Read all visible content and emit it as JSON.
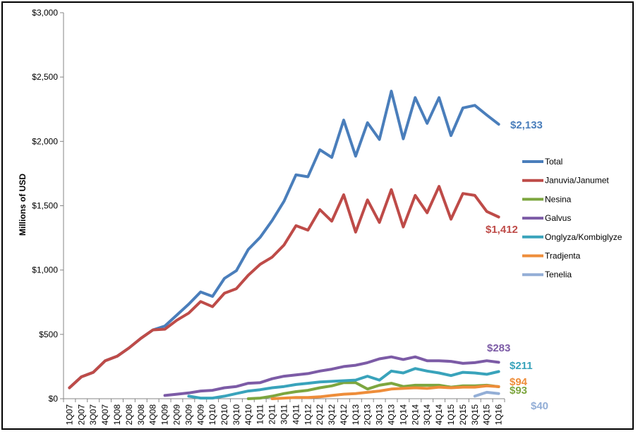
{
  "chart_data": {
    "type": "line",
    "title": "",
    "xlabel": "",
    "ylabel": "Millions of USD",
    "ylim": [
      0,
      3000
    ],
    "y_ticks": [
      {
        "value": 0,
        "label": "$0"
      },
      {
        "value": 500,
        "label": "$500"
      },
      {
        "value": 1000,
        "label": "$1,000"
      },
      {
        "value": 1500,
        "label": "$1,500"
      },
      {
        "value": 2000,
        "label": "$2,000"
      },
      {
        "value": 2500,
        "label": "$2,500"
      },
      {
        "value": 3000,
        "label": "$3,000"
      }
    ],
    "grid": false,
    "legend_position": "right",
    "categories": [
      "1Q07",
      "2Q07",
      "3Q07",
      "4Q07",
      "1Q08",
      "2Q08",
      "3Q08",
      "4Q08",
      "1Q09",
      "2Q09",
      "3Q09",
      "4Q09",
      "1Q10",
      "2Q10",
      "3Q10",
      "4Q10",
      "1Q11",
      "2Q11",
      "3Q11",
      "4Q11",
      "1Q12",
      "2Q12",
      "3Q12",
      "4Q12",
      "1Q13",
      "2Q13",
      "3Q13",
      "4Q13",
      "1Q14",
      "2Q14",
      "3Q14",
      "4Q14",
      "1Q15",
      "2Q15",
      "3Q15",
      "4Q15",
      "1Q16"
    ],
    "series": [
      {
        "name": "Total",
        "color": "#4a7ebb",
        "values": [
          85,
          170,
          205,
          295,
          330,
          395,
          470,
          535,
          565,
          650,
          735,
          830,
          795,
          935,
          995,
          1160,
          1255,
          1385,
          1535,
          1740,
          1725,
          1935,
          1875,
          2165,
          1885,
          2145,
          2015,
          2390,
          2020,
          2340,
          2140,
          2340,
          2045,
          2260,
          2280,
          2205,
          2133
        ]
      },
      {
        "name": "Januvia/Janumet",
        "color": "#be4b48",
        "values": [
          85,
          170,
          205,
          295,
          330,
          395,
          470,
          535,
          540,
          610,
          665,
          755,
          715,
          820,
          855,
          960,
          1045,
          1100,
          1195,
          1345,
          1310,
          1470,
          1380,
          1585,
          1295,
          1545,
          1370,
          1625,
          1335,
          1580,
          1445,
          1650,
          1395,
          1595,
          1580,
          1455,
          1412
        ]
      },
      {
        "name": "Nesina",
        "color": "#7da63f",
        "values": [
          null,
          null,
          null,
          null,
          null,
          null,
          null,
          null,
          null,
          null,
          null,
          null,
          null,
          null,
          null,
          0,
          5,
          20,
          40,
          55,
          65,
          85,
          100,
          125,
          125,
          75,
          105,
          120,
          95,
          105,
          105,
          105,
          90,
          100,
          100,
          105,
          93
        ]
      },
      {
        "name": "Galvus",
        "color": "#7c5ba6",
        "values": [
          null,
          null,
          null,
          null,
          null,
          null,
          null,
          null,
          25,
          35,
          45,
          60,
          65,
          85,
          95,
          120,
          125,
          155,
          175,
          185,
          195,
          215,
          230,
          250,
          260,
          280,
          310,
          325,
          305,
          325,
          295,
          295,
          290,
          275,
          280,
          295,
          283
        ]
      },
      {
        "name": "Onglyza/Kombiglyze",
        "color": "#39a3bb",
        "values": [
          null,
          null,
          null,
          null,
          null,
          null,
          null,
          null,
          null,
          null,
          20,
          5,
          5,
          20,
          40,
          60,
          70,
          85,
          95,
          110,
          120,
          130,
          135,
          140,
          145,
          175,
          145,
          215,
          200,
          235,
          215,
          200,
          180,
          205,
          200,
          190,
          211
        ]
      },
      {
        "name": "Tradjenta",
        "color": "#ee8d3a",
        "values": [
          null,
          null,
          null,
          null,
          null,
          null,
          null,
          null,
          null,
          null,
          null,
          null,
          null,
          null,
          null,
          null,
          null,
          0,
          5,
          10,
          10,
          15,
          25,
          35,
          40,
          50,
          60,
          75,
          80,
          85,
          80,
          90,
          85,
          90,
          90,
          100,
          94
        ]
      },
      {
        "name": "Tenelia",
        "color": "#93aed6",
        "values": [
          null,
          null,
          null,
          null,
          null,
          null,
          null,
          null,
          null,
          null,
          null,
          null,
          null,
          null,
          null,
          null,
          null,
          null,
          null,
          null,
          null,
          null,
          null,
          null,
          null,
          null,
          null,
          null,
          null,
          null,
          null,
          null,
          null,
          null,
          20,
          50,
          40
        ]
      }
    ],
    "end_labels": [
      {
        "series": "Total",
        "text": "$2,133"
      },
      {
        "series": "Januvia/Janumet",
        "text": "$1,412"
      },
      {
        "series": "Galvus",
        "text": "$283"
      },
      {
        "series": "Onglyza/Kombiglyze",
        "text": "$211"
      },
      {
        "series": "Tradjenta",
        "text": "$94"
      },
      {
        "series": "Nesina",
        "text": "$93"
      },
      {
        "series": "Tenelia",
        "text": "$40"
      }
    ]
  }
}
